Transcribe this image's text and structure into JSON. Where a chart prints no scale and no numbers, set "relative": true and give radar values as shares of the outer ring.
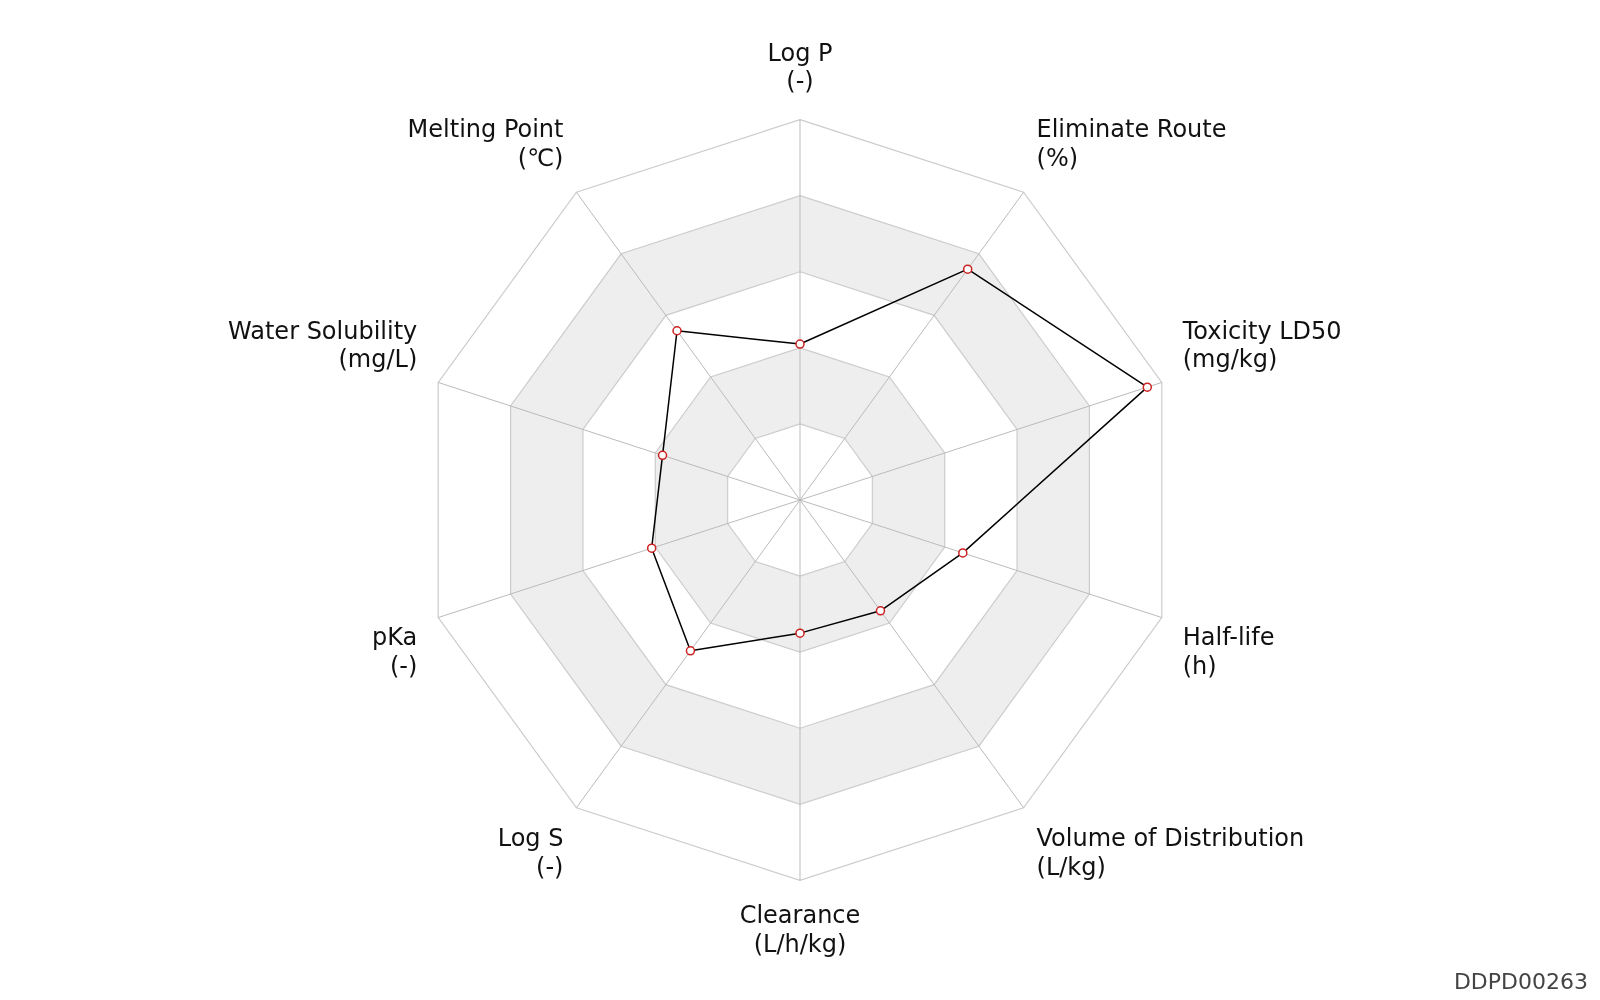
{
  "chart_data": {
    "type": "radar",
    "relative": true,
    "categories": [
      "Log P\n(-)",
      "Eliminate Route\n(%)",
      "Toxicity LD50\n(mg/kg)",
      "Half-life\n(h)",
      "Volume of Distribution\n(L/kg)",
      "Clearance\n(L/h/kg)",
      "Log S\n(-)",
      "pKa\n(-)",
      "Water Solubility\n(mg/L)",
      "Melting Point\n(℃)"
    ],
    "series": [
      {
        "color": "#000000",
        "values": [
          0.41,
          0.75,
          0.96,
          0.45,
          0.36,
          0.35,
          0.49,
          0.41,
          0.38,
          0.55
        ]
      }
    ],
    "marker": "circle",
    "legend": false,
    "annotations": [
      "DDPD00263"
    ]
  }
}
